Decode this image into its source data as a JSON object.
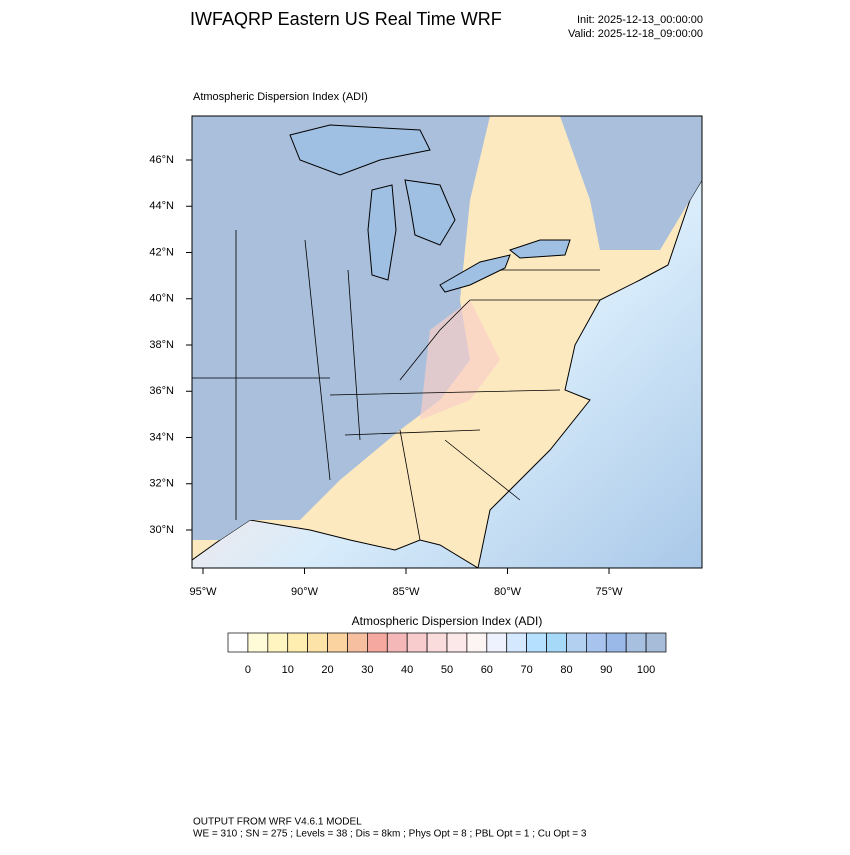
{
  "header": {
    "title": "IWFAQRP Eastern US Real Time WRF",
    "init": "Init: 2025-12-13_00:00:00",
    "valid": "Valid: 2025-12-18_09:00:00"
  },
  "map": {
    "title": "Atmospheric Dispersion Index   (ADI)",
    "lat_labels": [
      "46°N",
      "44°N",
      "42°N",
      "40°N",
      "38°N",
      "36°N",
      "34°N",
      "32°N",
      "30°N"
    ],
    "lon_labels": [
      "95°W",
      "90°W",
      "85°W",
      "80°W",
      "75°W"
    ]
  },
  "colorbar": {
    "title": "Atmospheric Dispersion Index (ADI)",
    "ticks": [
      0,
      10,
      20,
      30,
      40,
      50,
      60,
      70,
      80,
      90,
      100
    ],
    "colors": [
      "#ffffff",
      "#fffbd8",
      "#fff5c0",
      "#ffeeb0",
      "#fde3a8",
      "#fbd3a0",
      "#f6c0a0",
      "#f4a8a0",
      "#f5b8b8",
      "#f8cccc",
      "#fadcdc",
      "#fce8e8",
      "#fdf4f4",
      "#eef2ff",
      "#d4e8ff",
      "#b6e0ff",
      "#a6d8f8",
      "#b4d0f0",
      "#a8c4ee",
      "#9ab8e8",
      "#a8c0e0",
      "#a6bcd8"
    ]
  },
  "footer": {
    "line1": "OUTPUT FROM WRF V4.6.1 MODEL",
    "line2": "WE = 310 ; SN = 275 ; Levels = 38 ; Dis = 8km ; Phys Opt = 8 ; PBL Opt = 1 ; Cu Opt = 3"
  }
}
